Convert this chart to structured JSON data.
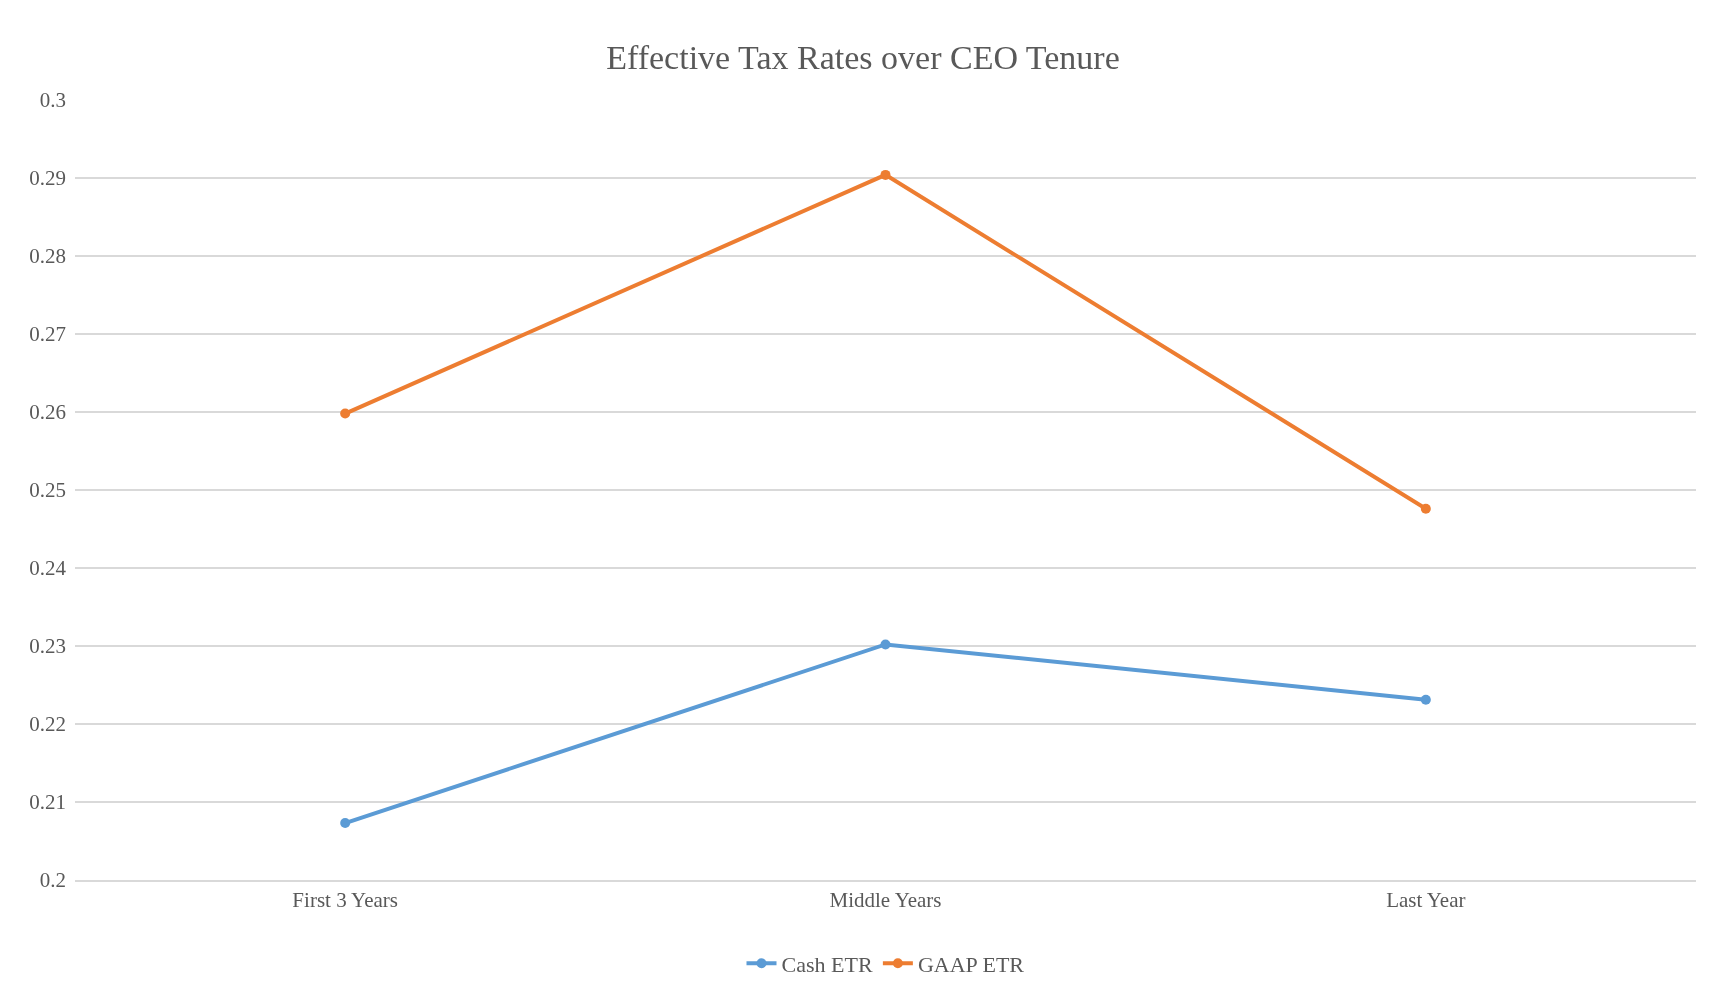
{
  "chart_data": {
    "type": "line",
    "title": "Effective Tax Rates over CEO Tenure",
    "categories": [
      "First 3 Years",
      "Middle Years",
      "Last Year"
    ],
    "series": [
      {
        "name": "Cash ETR",
        "color": "#5b9bd5",
        "values": [
          0.2073,
          0.2302,
          0.2231
        ]
      },
      {
        "name": "GAAP ETR",
        "color": "#ed7d31",
        "values": [
          0.2598,
          0.2904,
          0.2476
        ]
      }
    ],
    "ylim": [
      0.2,
      0.3
    ],
    "yticks": [
      0.2,
      0.21,
      0.22,
      0.23,
      0.24,
      0.25,
      0.26,
      0.27,
      0.28,
      0.29,
      0.3
    ],
    "grid": "y",
    "legend": "bottom",
    "marker": "circle",
    "line_style": "solid"
  }
}
